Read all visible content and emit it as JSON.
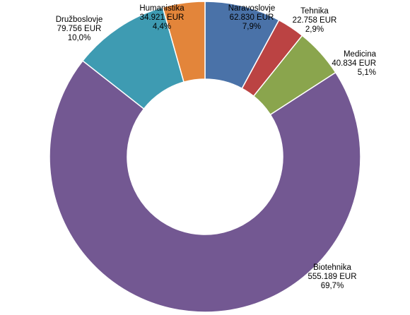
{
  "chart_data": {
    "type": "pie",
    "variant": "donut",
    "title": "",
    "legend": "none",
    "slices": [
      {
        "label": "Naravoslovje",
        "amount": "62.830 EUR",
        "pct_text": "7,9%",
        "value": 62830,
        "color": "#4a72a8"
      },
      {
        "label": "Tehnika",
        "amount": "22.758 EUR",
        "pct_text": "2,9%",
        "value": 22758,
        "color": "#bb4343"
      },
      {
        "label": "Medicina",
        "amount": "40.834 EUR",
        "pct_text": "5,1%",
        "value": 40834,
        "color": "#8aa54d"
      },
      {
        "label": "Biotehnika",
        "amount": "555.189 EUR",
        "pct_text": "69,7%",
        "value": 555189,
        "color": "#735892"
      },
      {
        "label": "Družboslovje",
        "amount": "79.756 EUR",
        "pct_text": "10,0%",
        "value": 79756,
        "color": "#3e9bb2"
      },
      {
        "label": "Humanistika",
        "amount": "34.921 EUR",
        "pct_text": "4,4%",
        "value": 34921,
        "color": "#e3853a"
      }
    ]
  }
}
